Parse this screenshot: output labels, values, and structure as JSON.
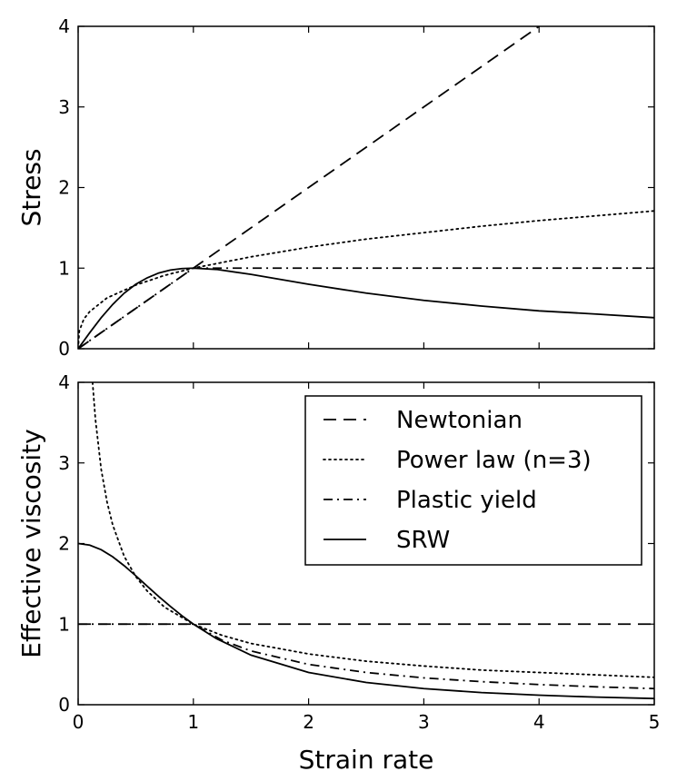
{
  "chart_data": [
    {
      "type": "line",
      "title": "",
      "xlabel": "",
      "ylabel": "Stress",
      "xlim": [
        0,
        5
      ],
      "ylim": [
        0,
        4
      ],
      "xticks": [],
      "yticks": [
        "0",
        "1",
        "2",
        "3",
        "4"
      ],
      "grid": false,
      "series": [
        {
          "key": "newtonian",
          "style": "dashed",
          "x": [
            0,
            1,
            2,
            3,
            4,
            5
          ],
          "y": [
            0,
            1,
            2,
            3,
            4,
            5
          ]
        },
        {
          "key": "power",
          "style": "dotted",
          "x": [
            0,
            0.01,
            0.05,
            0.1,
            0.25,
            0.5,
            0.75,
            1,
            1.5,
            2,
            2.5,
            3,
            3.5,
            4,
            4.5,
            5
          ],
          "y": [
            0,
            0.22,
            0.37,
            0.46,
            0.63,
            0.79,
            0.91,
            1.0,
            1.14,
            1.26,
            1.36,
            1.44,
            1.52,
            1.59,
            1.65,
            1.71
          ]
        },
        {
          "key": "plastic",
          "style": "dashdot",
          "x": [
            0,
            1,
            5
          ],
          "y": [
            0,
            1,
            1
          ]
        },
        {
          "key": "srw",
          "style": "solid",
          "x": [
            0,
            0.1,
            0.2,
            0.3,
            0.4,
            0.5,
            0.6,
            0.7,
            0.8,
            0.9,
            1.0,
            1.2,
            1.5,
            2,
            2.5,
            3,
            3.5,
            4,
            4.5,
            5
          ],
          "y": [
            0,
            0.198,
            0.385,
            0.55,
            0.69,
            0.8,
            0.88,
            0.94,
            0.976,
            0.994,
            1.0,
            0.984,
            0.923,
            0.8,
            0.69,
            0.6,
            0.53,
            0.47,
            0.43,
            0.385
          ]
        }
      ]
    },
    {
      "type": "line",
      "title": "",
      "xlabel": "Strain rate",
      "ylabel": "Effective viscosity",
      "xlim": [
        0,
        5
      ],
      "ylim": [
        0,
        4
      ],
      "xticks": [
        "0",
        "1",
        "2",
        "3",
        "4",
        "5"
      ],
      "yticks": [
        "0",
        "1",
        "2",
        "3",
        "4"
      ],
      "grid": false,
      "legend": {
        "placement": "top-right",
        "entries": [
          {
            "key": "newtonian",
            "label": "Newtonian",
            "style": "dashed"
          },
          {
            "key": "power",
            "label": "Power law (n=3)",
            "style": "dotted"
          },
          {
            "key": "plastic",
            "label": "Plastic yield",
            "style": "dashdot"
          },
          {
            "key": "srw",
            "label": "SRW",
            "style": "solid"
          }
        ]
      },
      "series": [
        {
          "key": "newtonian",
          "style": "dashed",
          "x": [
            0,
            5
          ],
          "y": [
            1,
            1
          ]
        },
        {
          "key": "power",
          "style": "dotted",
          "x": [
            0.125,
            0.15,
            0.2,
            0.25,
            0.3,
            0.4,
            0.5,
            0.6,
            0.75,
            1,
            1.25,
            1.5,
            2,
            2.5,
            3,
            3.5,
            4,
            4.5,
            5
          ],
          "y": [
            4.0,
            3.54,
            2.92,
            2.52,
            2.23,
            1.84,
            1.59,
            1.41,
            1.21,
            1.0,
            0.86,
            0.76,
            0.63,
            0.54,
            0.48,
            0.43,
            0.4,
            0.37,
            0.34
          ]
        },
        {
          "key": "plastic",
          "style": "dashdot",
          "x": [
            0,
            1,
            1.25,
            1.5,
            2,
            2.5,
            3,
            3.5,
            4,
            4.5,
            5
          ],
          "y": [
            1,
            1,
            0.8,
            0.667,
            0.5,
            0.4,
            0.333,
            0.286,
            0.25,
            0.222,
            0.2
          ]
        },
        {
          "key": "srw",
          "style": "solid",
          "x": [
            0,
            0.1,
            0.2,
            0.3,
            0.4,
            0.5,
            0.6,
            0.7,
            0.8,
            0.9,
            1.0,
            1.2,
            1.5,
            2,
            2.5,
            3,
            3.5,
            4,
            4.5,
            5
          ],
          "y": [
            2.0,
            1.98,
            1.923,
            1.835,
            1.724,
            1.6,
            1.47,
            1.342,
            1.22,
            1.105,
            1.0,
            0.82,
            0.615,
            0.4,
            0.276,
            0.2,
            0.151,
            0.118,
            0.094,
            0.077
          ]
        }
      ]
    }
  ]
}
